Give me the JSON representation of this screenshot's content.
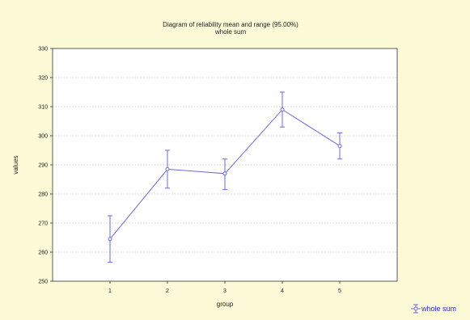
{
  "chart_data": {
    "type": "line",
    "title": "Diagram of reliability mean and range (95.00%)",
    "subtitle": "whole sum",
    "xlabel": "group",
    "ylabel": "values",
    "categories": [
      "1",
      "2",
      "3",
      "4",
      "5"
    ],
    "y_ticks": [
      "250",
      "260",
      "270",
      "280",
      "290",
      "300",
      "310",
      "320",
      "330"
    ],
    "ylim": [
      250,
      330
    ],
    "xlim": [
      0,
      6
    ],
    "grid": true,
    "legend_position": "bottom-right",
    "series": [
      {
        "name": "whole sum",
        "color": "#6a6ae0",
        "x": [
          1,
          2,
          3,
          4,
          5
        ],
        "values": [
          264.5,
          288.5,
          287,
          309,
          296.5
        ],
        "lower": [
          256.5,
          282,
          281.5,
          303,
          292
        ],
        "upper": [
          272.5,
          295,
          292,
          315,
          301
        ]
      }
    ]
  }
}
